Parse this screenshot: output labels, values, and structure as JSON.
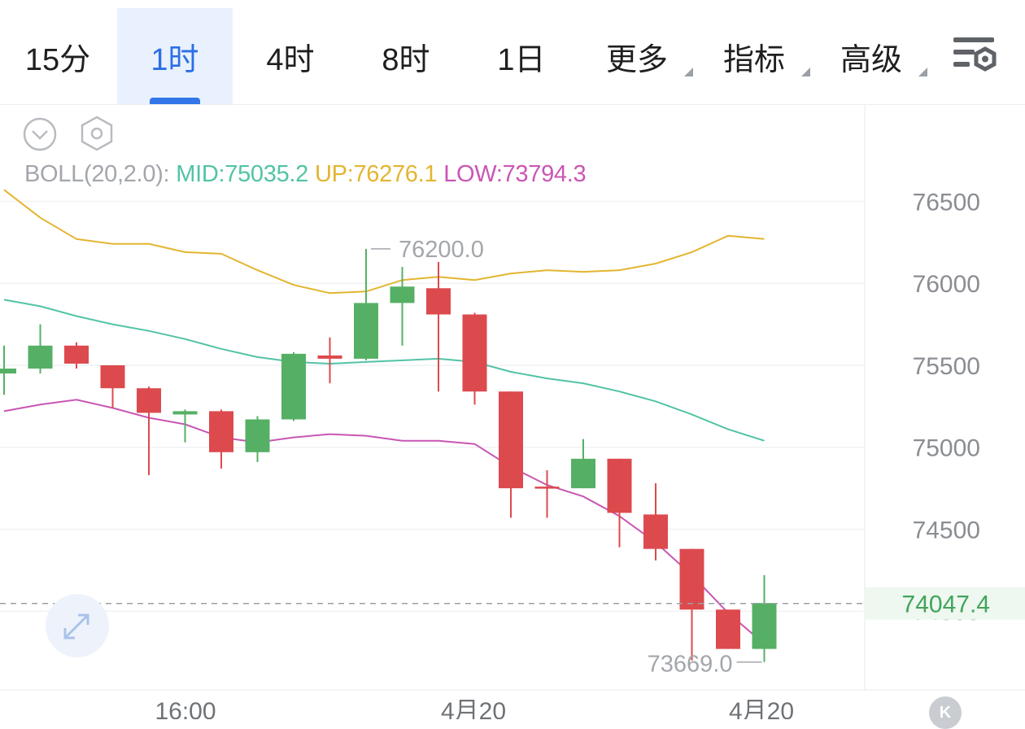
{
  "tabs": [
    {
      "label": "15分",
      "active": false,
      "dropdown": false
    },
    {
      "label": "1时",
      "active": true,
      "dropdown": false
    },
    {
      "label": "4时",
      "active": false,
      "dropdown": false
    },
    {
      "label": "8时",
      "active": false,
      "dropdown": false
    },
    {
      "label": "1日",
      "active": false,
      "dropdown": false
    },
    {
      "label": "更多",
      "active": false,
      "dropdown": true
    },
    {
      "label": "指标",
      "active": false,
      "dropdown": true
    },
    {
      "label": "高级",
      "active": false,
      "dropdown": true
    }
  ],
  "icons": {
    "settings": "chart-settings-icon",
    "collapse": "chevron-down-circle-icon",
    "hexagon": "hexagon-settings-icon",
    "expand": "expand-arrows-icon",
    "kline": "k-badge-icon"
  },
  "kline_badge": "K",
  "indicator": {
    "prefix": "BOLL(20,2.0):",
    "mid": "MID:75035.2",
    "up": "UP:76276.1",
    "low": "LOW:73794.3"
  },
  "colors": {
    "up_candle": "#55b065",
    "down_candle": "#dc4a4e",
    "mid": "#52c3a6",
    "up_band": "#e3b530",
    "low_band": "#c956b4",
    "axis_text": "#8a8d92",
    "price_label": "#41a55a",
    "accent": "#2d6ee6"
  },
  "chart_data": {
    "type": "candlestick",
    "y_axis": {
      "min": 73500,
      "max": 76800,
      "ticks": [
        76500,
        76000,
        75500,
        75000,
        74500,
        74000
      ]
    },
    "x_axis": {
      "labels": [
        "16:00",
        "4月20",
        "4月20"
      ]
    },
    "current_price": "74047.4",
    "annotations": {
      "high": "76200.0",
      "low": "73669.0"
    },
    "candles": [
      {
        "o": 75450,
        "h": 75620,
        "l": 75320,
        "c": 75480
      },
      {
        "o": 75480,
        "h": 75750,
        "l": 75450,
        "c": 75620
      },
      {
        "o": 75620,
        "h": 75640,
        "l": 75480,
        "c": 75510
      },
      {
        "o": 75500,
        "h": 75500,
        "l": 75240,
        "c": 75360
      },
      {
        "o": 75360,
        "h": 75370,
        "l": 74830,
        "c": 75210
      },
      {
        "o": 75200,
        "h": 75230,
        "l": 75030,
        "c": 75220
      },
      {
        "o": 75220,
        "h": 75230,
        "l": 74870,
        "c": 74970
      },
      {
        "o": 74970,
        "h": 75190,
        "l": 74910,
        "c": 75170
      },
      {
        "o": 75170,
        "h": 75580,
        "l": 75160,
        "c": 75570
      },
      {
        "o": 75560,
        "h": 75670,
        "l": 75390,
        "c": 75540
      },
      {
        "o": 75540,
        "h": 76210,
        "l": 75530,
        "c": 75880
      },
      {
        "o": 75880,
        "h": 76100,
        "l": 75620,
        "c": 75980
      },
      {
        "o": 75970,
        "h": 76130,
        "l": 75340,
        "c": 75810
      },
      {
        "o": 75810,
        "h": 75820,
        "l": 75260,
        "c": 75340
      },
      {
        "o": 75340,
        "h": 75340,
        "l": 74570,
        "c": 74750
      },
      {
        "o": 74760,
        "h": 74860,
        "l": 74570,
        "c": 74750
      },
      {
        "o": 74750,
        "h": 75050,
        "l": 74750,
        "c": 74930
      },
      {
        "o": 74930,
        "h": 74930,
        "l": 74390,
        "c": 74600
      },
      {
        "o": 74590,
        "h": 74780,
        "l": 74310,
        "c": 74380
      },
      {
        "o": 74380,
        "h": 74380,
        "l": 73700,
        "c": 74010
      },
      {
        "o": 74010,
        "h": 74010,
        "l": 73770,
        "c": 73770
      },
      {
        "o": 73770,
        "h": 74220,
        "l": 73690,
        "c": 74050
      }
    ],
    "series": [
      {
        "values": [
          76570,
          76400,
          76270,
          76240,
          76240,
          76190,
          76180,
          76080,
          75990,
          75940,
          75950,
          76020,
          76040,
          76020,
          76060,
          76080,
          76070,
          76080,
          76120,
          76190,
          76290,
          76270
        ]
      },
      {
        "values": [
          75900,
          75860,
          75800,
          75750,
          75710,
          75660,
          75600,
          75550,
          75520,
          75510,
          75520,
          75530,
          75540,
          75520,
          75460,
          75420,
          75390,
          75340,
          75280,
          75200,
          75110,
          75040
        ]
      },
      {
        "values": [
          75220,
          75260,
          75290,
          75240,
          75180,
          75140,
          75060,
          75030,
          75060,
          75080,
          75070,
          75040,
          75040,
          75020,
          74880,
          74770,
          74700,
          74580,
          74420,
          74220,
          73990,
          73800
        ]
      }
    ]
  }
}
